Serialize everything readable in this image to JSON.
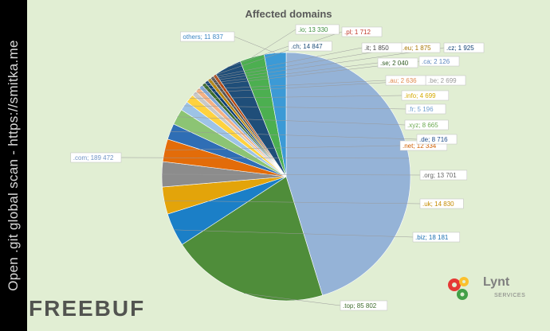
{
  "sidebar": {
    "caption": "Open .git global scan - https://smitka.me"
  },
  "chart_data": {
    "type": "pie",
    "title": "Affected domains",
    "slices": [
      {
        "label": ".com",
        "value": 189472,
        "text": ".com; 189 472",
        "color": "#95b3d7",
        "text_color": "#6f93c5"
      },
      {
        "label": ".top",
        "value": 85802,
        "text": ".top; 85 802",
        "color": "#4f8d3a",
        "text_color": "#3e6b2d"
      },
      {
        "label": ".biz",
        "value": 18181,
        "text": ".biz; 18 181",
        "color": "#1b7fc7",
        "text_color": "#1b6fb0"
      },
      {
        "label": ".uk",
        "value": 14830,
        "text": ".uk; 14 830",
        "color": "#e3a40a",
        "text_color": "#c48a00"
      },
      {
        "label": ".org",
        "value": 13701,
        "text": ".org; 13 701",
        "color": "#8c8c8c",
        "text_color": "#666666"
      },
      {
        "label": ".net",
        "value": 12334,
        "text": ".net; 12 334",
        "color": "#e36c09",
        "text_color": "#d05f00"
      },
      {
        "label": ".de",
        "value": 8716,
        "text": ".de; 8 716",
        "color": "#2f6eb5",
        "text_color": "#1f4e8c"
      },
      {
        "label": ".xyz",
        "value": 8665,
        "text": ".xyz; 8 665",
        "color": "#8cc474",
        "text_color": "#6aa84f"
      },
      {
        "label": ".fr",
        "value": 5196,
        "text": ".fr; 5 196",
        "color": "#9dc3e6",
        "text_color": "#6f9fcf"
      },
      {
        "label": ".info",
        "value": 4699,
        "text": ".info; 4 699",
        "color": "#ffd23f",
        "text_color": "#d4a900"
      },
      {
        "label": ".be",
        "value": 2699,
        "text": ".be; 2 699",
        "color": "#c9c9c9",
        "text_color": "#9a9a9a"
      },
      {
        "label": ".au",
        "value": 2636,
        "text": ".au; 2 636",
        "color": "#f4b183",
        "text_color": "#e08a50"
      },
      {
        "label": ".ca",
        "value": 2126,
        "text": ".ca; 2 126",
        "color": "#7fa7d9",
        "text_color": "#5c86bf"
      },
      {
        "label": ".se",
        "value": 2040,
        "text": ".se; 2 040",
        "color": "#3a6b2a",
        "text_color": "#2e5a20"
      },
      {
        "label": ".cz",
        "value": 1925,
        "text": ".cz; 1 925",
        "color": "#0e3f73",
        "text_color": "#0e3f73"
      },
      {
        "label": ".eu",
        "value": 1875,
        "text": ".eu; 1 875",
        "color": "#b8860b",
        "text_color": "#a77400"
      },
      {
        "label": ".it",
        "value": 1850,
        "text": ".it; 1 850",
        "color": "#555555",
        "text_color": "#444444"
      },
      {
        "label": ".pl",
        "value": 1712,
        "text": ".pl; 1 712",
        "color": "#b5460b",
        "text_color": "#c0392b"
      },
      {
        "label": ".ch",
        "value": 14847,
        "text": ".ch; 14 847",
        "color": "#1f4e79",
        "text_color": "#1f4e79"
      },
      {
        "label": ".io",
        "value": 13330,
        "text": ".io; 13 330",
        "color": "#4caf50",
        "text_color": "#3f8f3f"
      },
      {
        "label": "others",
        "value": 11837,
        "text": "others; 11 837",
        "color": "#3c9ad6",
        "text_color": "#3c86c2"
      }
    ],
    "legend": "none"
  },
  "watermark": {
    "text": "FREEBUF"
  },
  "logo": {
    "name": "Lynt",
    "sub": "SERVICES"
  }
}
